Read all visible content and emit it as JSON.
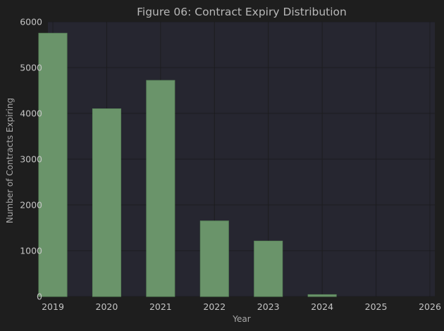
{
  "chart_data": {
    "type": "bar",
    "title": "Figure 06: Contract Expiry Distribution",
    "xlabel": "Year",
    "ylabel": "Number of Contracts Expiring",
    "categories": [
      "2019",
      "2020",
      "2021",
      "2022",
      "2023",
      "2024",
      "2025",
      "2026"
    ],
    "values": [
      5750,
      4100,
      4720,
      1650,
      1210,
      40,
      0,
      0
    ],
    "ylim": [
      0,
      6000
    ],
    "yticks": [
      0,
      1000,
      2000,
      3000,
      4000,
      5000,
      6000
    ],
    "grid": true,
    "colors": {
      "background": "#1e1e1e",
      "plot_background": "#262630",
      "bar": "#6a946a",
      "grid": "#1c1c1f"
    }
  }
}
